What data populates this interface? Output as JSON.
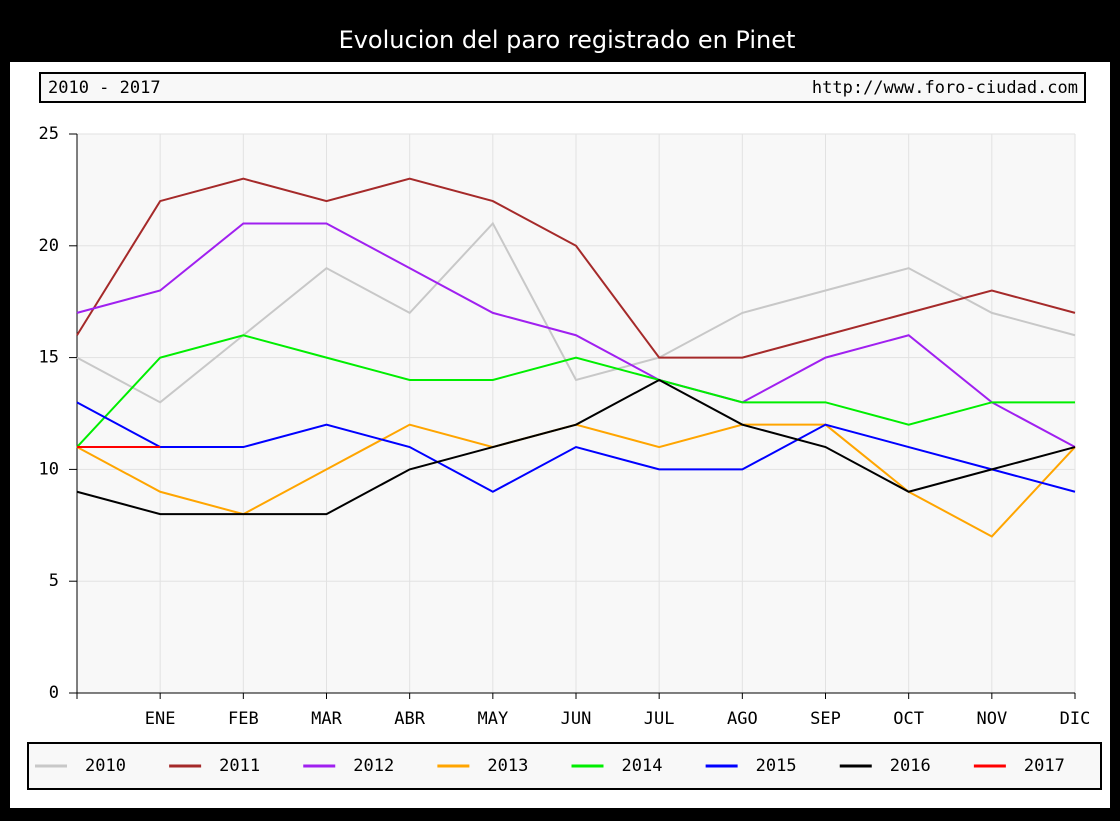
{
  "chart_data": {
    "type": "line",
    "title": "Evolucion del paro registrado en Pinet",
    "subtitle": "2010 - 2017",
    "source": "http://www.foro-ciudad.com",
    "categories": [
      null,
      "ENE",
      "FEB",
      "MAR",
      "ABR",
      "MAY",
      "JUN",
      "JUL",
      "AGO",
      "SEP",
      "OCT",
      "NOV",
      "DIC"
    ],
    "ylim": [
      0,
      25
    ],
    "yticks": [
      0,
      5,
      10,
      15,
      20,
      25
    ],
    "grid": true,
    "series": [
      {
        "name": "2010",
        "color": "#c8c8c8",
        "values": [
          15,
          13,
          16,
          19,
          17,
          21,
          14,
          15,
          17,
          18,
          19,
          17,
          16
        ]
      },
      {
        "name": "2011",
        "color": "#a52a2a",
        "values": [
          16,
          22,
          23,
          22,
          23,
          22,
          20,
          15,
          15,
          16,
          17,
          18,
          17
        ]
      },
      {
        "name": "2012",
        "color": "#a020f0",
        "values": [
          17,
          18,
          21,
          21,
          19,
          17,
          16,
          14,
          13,
          15,
          16,
          13,
          11
        ]
      },
      {
        "name": "2013",
        "color": "#ffa500",
        "values": [
          11,
          9,
          8,
          10,
          12,
          11,
          12,
          11,
          12,
          12,
          9,
          7,
          11
        ]
      },
      {
        "name": "2014",
        "color": "#00ee00",
        "values": [
          11,
          15,
          16,
          15,
          14,
          14,
          15,
          14,
          13,
          13,
          12,
          13,
          13
        ]
      },
      {
        "name": "2015",
        "color": "#0000ff",
        "values": [
          13,
          11,
          11,
          12,
          11,
          9,
          11,
          10,
          10,
          12,
          11,
          10,
          9
        ]
      },
      {
        "name": "2016",
        "color": "#000000",
        "values": [
          9,
          8,
          8,
          8,
          10,
          11,
          12,
          14,
          12,
          11,
          9,
          10,
          11
        ]
      },
      {
        "name": "2017",
        "color": "#ff0000",
        "values": [
          11,
          11,
          null,
          null,
          null,
          null,
          null,
          null,
          null,
          null,
          null,
          null,
          null
        ]
      }
    ]
  }
}
